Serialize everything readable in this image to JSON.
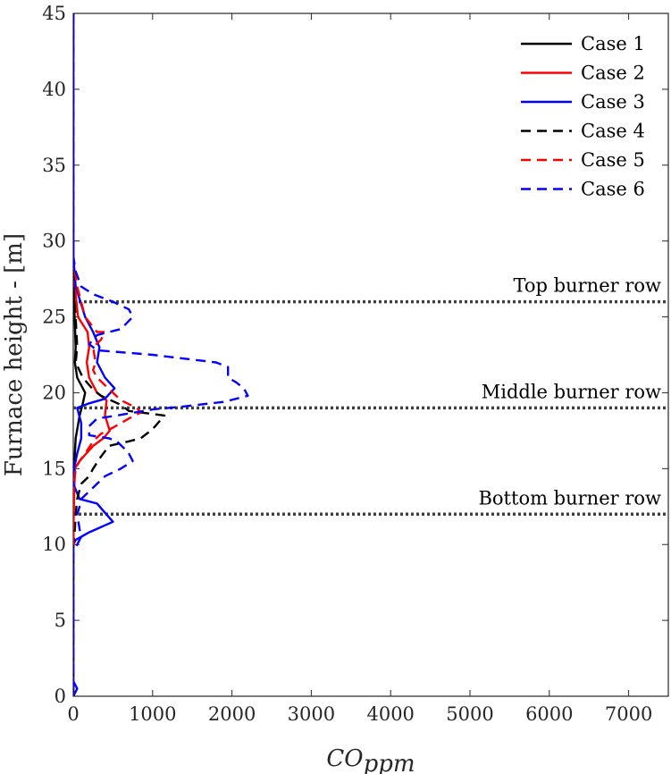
{
  "chart_data": {
    "type": "line",
    "title": "",
    "xlabel": "CO",
    "xlabel_sub": "ppm",
    "ylabel": "Furnace height - [m]",
    "xlim": [
      0,
      7500
    ],
    "ylim": [
      0,
      45
    ],
    "xticks": [
      "0",
      "1000",
      "2000",
      "3000",
      "4000",
      "5000",
      "6000",
      "7000"
    ],
    "yticks": [
      "0",
      "5",
      "10",
      "15",
      "20",
      "25",
      "30",
      "35",
      "40",
      "45"
    ],
    "grid": false,
    "legend_position": "top-right",
    "burner_rows": [
      {
        "label": "Top burner row",
        "y": 26
      },
      {
        "label": "Middle burner row",
        "y": 19
      },
      {
        "label": "Bottom burner row",
        "y": 12
      }
    ],
    "series": [
      {
        "name": "Case 1",
        "color": "#000000",
        "dash": "solid",
        "points": [
          [
            0,
            45
          ],
          [
            0,
            30
          ],
          [
            10,
            26
          ],
          [
            30,
            23
          ],
          [
            20,
            22
          ],
          [
            50,
            21
          ],
          [
            150,
            20
          ],
          [
            120,
            19.3
          ],
          [
            80,
            18.5
          ],
          [
            30,
            17
          ],
          [
            10,
            15
          ],
          [
            5,
            12
          ],
          [
            0,
            9
          ],
          [
            0,
            0
          ]
        ]
      },
      {
        "name": "Case 2",
        "color": "#ff0000",
        "dash": "solid",
        "points": [
          [
            0,
            45
          ],
          [
            0,
            29
          ],
          [
            20,
            27
          ],
          [
            60,
            25
          ],
          [
            180,
            24
          ],
          [
            200,
            23
          ],
          [
            170,
            22
          ],
          [
            200,
            21
          ],
          [
            300,
            20
          ],
          [
            420,
            19.5
          ],
          [
            400,
            18.5
          ],
          [
            460,
            17.5
          ],
          [
            380,
            17
          ],
          [
            250,
            16.5
          ],
          [
            80,
            15.5
          ],
          [
            20,
            15
          ],
          [
            10,
            13
          ],
          [
            5,
            12
          ],
          [
            0,
            10
          ],
          [
            0,
            0
          ]
        ]
      },
      {
        "name": "Case 3",
        "color": "#0000ff",
        "dash": "solid",
        "points": [
          [
            0,
            45
          ],
          [
            0,
            29
          ],
          [
            30,
            27
          ],
          [
            150,
            25
          ],
          [
            250,
            24
          ],
          [
            330,
            23
          ],
          [
            300,
            22
          ],
          [
            400,
            21
          ],
          [
            520,
            20.3
          ],
          [
            400,
            19.6
          ],
          [
            200,
            19.3
          ],
          [
            50,
            19
          ],
          [
            100,
            18
          ],
          [
            100,
            17
          ],
          [
            50,
            16
          ],
          [
            10,
            15
          ],
          [
            0,
            14
          ],
          [
            80,
            13
          ],
          [
            300,
            12.7
          ],
          [
            500,
            11.5
          ],
          [
            200,
            10.8
          ],
          [
            30,
            10.3
          ],
          [
            0,
            10
          ],
          [
            0,
            1
          ],
          [
            50,
            0.5
          ],
          [
            0,
            0
          ]
        ]
      },
      {
        "name": "Case 4",
        "color": "#000000",
        "dash": "dashed",
        "points": [
          [
            0,
            45
          ],
          [
            0,
            27
          ],
          [
            30,
            25
          ],
          [
            50,
            23
          ],
          [
            30,
            22
          ],
          [
            120,
            21
          ],
          [
            250,
            20.2
          ],
          [
            350,
            19.8
          ],
          [
            600,
            19.2
          ],
          [
            700,
            18.8
          ],
          [
            1150,
            18.5
          ],
          [
            1000,
            17.6
          ],
          [
            850,
            17
          ],
          [
            700,
            16.8
          ],
          [
            450,
            16.5
          ],
          [
            350,
            15.8
          ],
          [
            250,
            15
          ],
          [
            200,
            14.5
          ],
          [
            100,
            14
          ],
          [
            50,
            13
          ],
          [
            30,
            12
          ],
          [
            20,
            11
          ],
          [
            0,
            10
          ],
          [
            0,
            0
          ]
        ]
      },
      {
        "name": "Case 5",
        "color": "#ff0000",
        "dash": "dashed",
        "points": [
          [
            0,
            45
          ],
          [
            0,
            29
          ],
          [
            20,
            28
          ],
          [
            50,
            27
          ],
          [
            150,
            25
          ],
          [
            300,
            24
          ],
          [
            400,
            24
          ],
          [
            350,
            23.5
          ],
          [
            250,
            23
          ],
          [
            280,
            22
          ],
          [
            250,
            21.5
          ],
          [
            300,
            21
          ],
          [
            400,
            20.5
          ],
          [
            500,
            20
          ],
          [
            600,
            19.5
          ],
          [
            800,
            19
          ],
          [
            850,
            18.7
          ],
          [
            700,
            18.3
          ],
          [
            500,
            17.7
          ],
          [
            350,
            17.3
          ],
          [
            250,
            16.8
          ],
          [
            150,
            16
          ],
          [
            80,
            15.5
          ],
          [
            30,
            15
          ],
          [
            10,
            14
          ],
          [
            0,
            12
          ],
          [
            0,
            0
          ]
        ]
      },
      {
        "name": "Case 6",
        "color": "#0000ff",
        "dash": "dashed",
        "points": [
          [
            0,
            45
          ],
          [
            0,
            29
          ],
          [
            30,
            28
          ],
          [
            100,
            27
          ],
          [
            250,
            26.5
          ],
          [
            500,
            26
          ],
          [
            700,
            25.5
          ],
          [
            750,
            25
          ],
          [
            600,
            24.2
          ],
          [
            300,
            23.8
          ],
          [
            200,
            23.2
          ],
          [
            300,
            22.8
          ],
          [
            1000,
            22.5
          ],
          [
            1800,
            22
          ],
          [
            1950,
            21.7
          ],
          [
            1950,
            21
          ],
          [
            2050,
            20.7
          ],
          [
            2150,
            20.3
          ],
          [
            2200,
            19.8
          ],
          [
            1900,
            19.4
          ],
          [
            1400,
            19.1
          ],
          [
            1000,
            18.9
          ],
          [
            550,
            18.5
          ],
          [
            300,
            18.3
          ],
          [
            200,
            17.8
          ],
          [
            200,
            17.2
          ],
          [
            450,
            17
          ],
          [
            550,
            16.8
          ],
          [
            650,
            16.3
          ],
          [
            700,
            16
          ],
          [
            750,
            15.5
          ],
          [
            600,
            15
          ],
          [
            400,
            14.5
          ],
          [
            300,
            14
          ],
          [
            200,
            13.5
          ],
          [
            100,
            13
          ],
          [
            80,
            12.5
          ],
          [
            50,
            12
          ],
          [
            80,
            11
          ],
          [
            100,
            10.5
          ],
          [
            50,
            10
          ],
          [
            0,
            9.5
          ],
          [
            0,
            0
          ]
        ]
      }
    ]
  }
}
